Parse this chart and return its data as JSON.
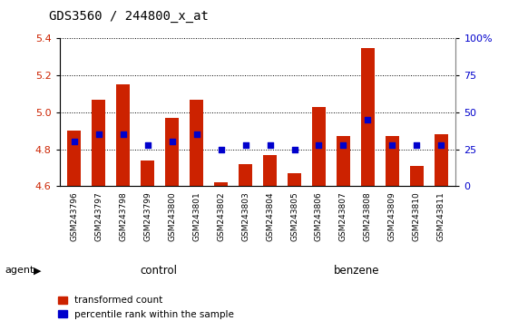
{
  "title": "GDS3560 / 244800_x_at",
  "samples": [
    "GSM243796",
    "GSM243797",
    "GSM243798",
    "GSM243799",
    "GSM243800",
    "GSM243801",
    "GSM243802",
    "GSM243803",
    "GSM243804",
    "GSM243805",
    "GSM243806",
    "GSM243807",
    "GSM243808",
    "GSM243809",
    "GSM243810",
    "GSM243811"
  ],
  "red_values": [
    4.9,
    5.07,
    5.15,
    4.74,
    4.97,
    5.07,
    4.62,
    4.72,
    4.77,
    4.67,
    5.03,
    4.87,
    5.35,
    4.87,
    4.71,
    4.88
  ],
  "blue_percentiles": [
    30,
    35,
    35,
    28,
    30,
    35,
    25,
    28,
    28,
    25,
    28,
    28,
    45,
    28,
    28,
    28
  ],
  "ymin": 4.6,
  "ymax": 5.4,
  "y2min": 0,
  "y2max": 100,
  "yticks": [
    4.6,
    4.8,
    5.0,
    5.2,
    5.4
  ],
  "y2ticks": [
    0,
    25,
    50,
    75,
    100
  ],
  "bar_bottom": 4.6,
  "bar_color": "#cc2200",
  "dot_color": "#0000cc",
  "bg_color": "#ffffff",
  "xtick_bg_color": "#c8c8c8",
  "control_color": "#90ee90",
  "benzene_color": "#3cb371",
  "control_label": "control",
  "benzene_label": "benzene",
  "agent_label": "agent",
  "legend_red": "transformed count",
  "legend_blue": "percentile rank within the sample",
  "control_count": 8,
  "benzene_count": 8,
  "n_samples": 16
}
